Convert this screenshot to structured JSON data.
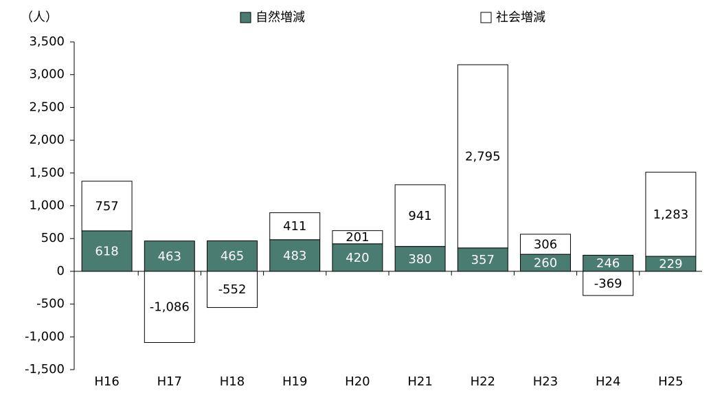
{
  "chart_data": {
    "type": "stacked_bar",
    "y_label": "（人）",
    "categories": [
      "H16",
      "H17",
      "H18",
      "H19",
      "H20",
      "H21",
      "H22",
      "H23",
      "H24",
      "H25"
    ],
    "series": [
      {
        "name": "自然増減",
        "color": "#4a7c72",
        "label_color": "#ffffff",
        "values": [
          618,
          463,
          465,
          483,
          420,
          380,
          357,
          260,
          246,
          229
        ]
      },
      {
        "name": "社会増減",
        "color": "#ffffff",
        "label_color": "#000000",
        "values": [
          757,
          -1086,
          -552,
          411,
          201,
          941,
          2795,
          306,
          -369,
          1283
        ],
        "value_labels": [
          "757",
          "-1,086",
          "-552",
          "411",
          "201",
          "941",
          "2,795",
          "306",
          "-369",
          "1,283"
        ]
      }
    ],
    "ylim": [
      -1500,
      3500
    ],
    "yticks": [
      {
        "value": -1500,
        "label": "-1,500"
      },
      {
        "value": -1000,
        "label": "-1,000"
      },
      -500,
      0,
      500,
      {
        "value": 1000,
        "label": "1,000"
      },
      {
        "value": 1500,
        "label": "1,500"
      },
      {
        "value": 2000,
        "label": "2,000"
      },
      {
        "value": 2500,
        "label": "2,500"
      },
      {
        "value": 3000,
        "label": "3,000"
      },
      {
        "value": 3500,
        "label": "3,500"
      }
    ],
    "grid": false,
    "legend": "top"
  }
}
